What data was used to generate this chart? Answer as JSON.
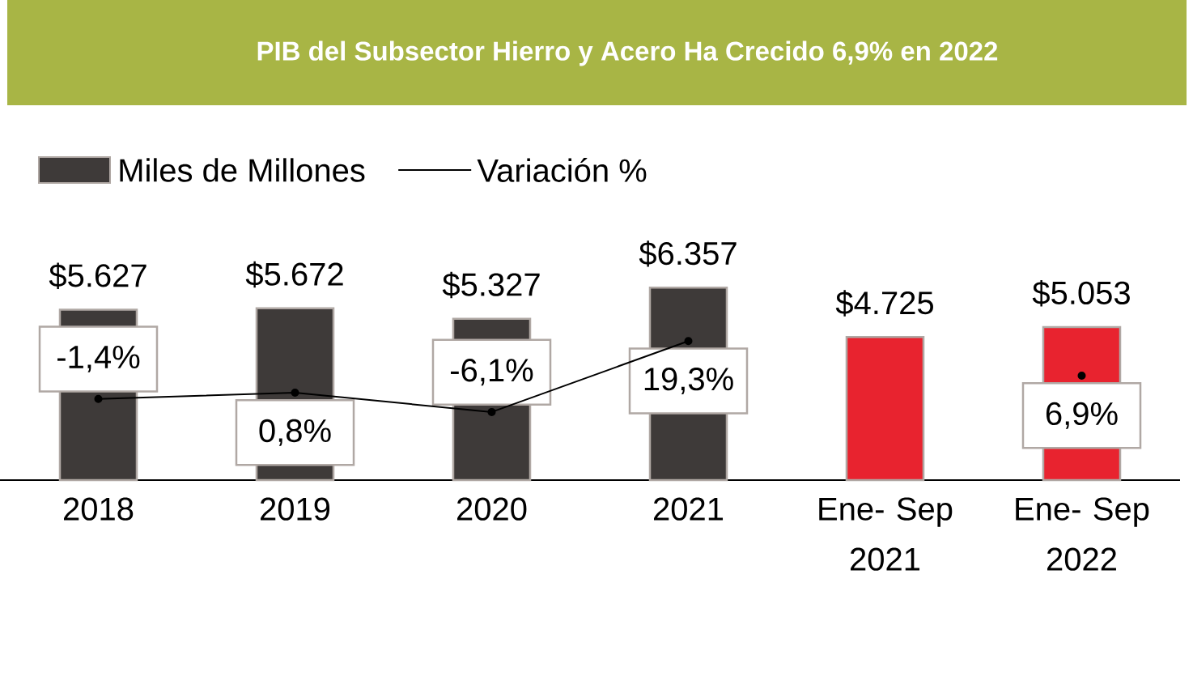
{
  "chart_data": {
    "type": "bar",
    "title": "PIB del Subsector Hierro y Acero Ha Crecido 6,9% en 2022",
    "categories": [
      "2018",
      "2019",
      "2020",
      "2021",
      "Ene- Sep 2021",
      "Ene- Sep 2022"
    ],
    "legend": "top left",
    "marker": "circle",
    "series": [
      {
        "name": "Miles de Millones",
        "colors": [
          "#3e3a39",
          "#3e3a39",
          "#3e3a39",
          "#3e3a39",
          "#e8232f",
          "#e8232f"
        ],
        "values": [
          5627,
          5672,
          5327,
          6357,
          4725,
          5053
        ],
        "value_labels": [
          "$5.627",
          "$5.672",
          "$5.327",
          "$6.357",
          "$4.725",
          "$5.053"
        ]
      },
      {
        "name": "Variación %",
        "type": "line",
        "axis": "y2",
        "color": "#000000",
        "values": [
          -1.4,
          0.8,
          -6.1,
          19.3,
          null,
          6.9
        ],
        "value_labels": [
          "-1,4%",
          "0,8%",
          "-6,1%",
          "19,3%",
          null,
          "6,9%"
        ]
      }
    ]
  }
}
